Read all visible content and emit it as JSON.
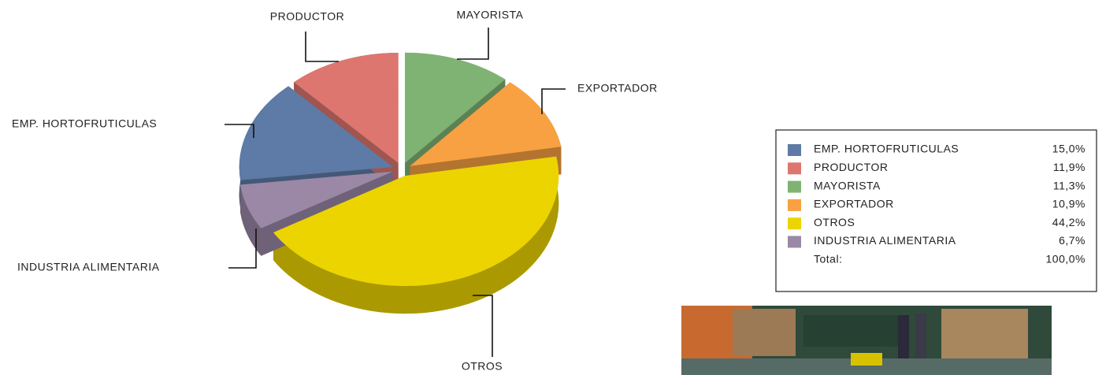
{
  "chart_data": {
    "type": "pie",
    "categories": [
      "EMP. HORTOFRUTICULAS",
      "PRODUCTOR",
      "MAYORISTA",
      "EXPORTADOR",
      "OTROS",
      "INDUSTRIA ALIMENTARIA"
    ],
    "values": [
      15.0,
      11.9,
      11.3,
      10.9,
      44.2,
      6.7
    ],
    "value_labels": [
      "15,0%",
      "11,9%",
      "11,3%",
      "10,9%",
      "44,2%",
      "6,7%"
    ],
    "colors": [
      "#5e7aa6",
      "#dd766f",
      "#7fb374",
      "#f8a142",
      "#ecd400",
      "#9a88a6"
    ],
    "total_name": "Total:",
    "total": 100,
    "total_label": "100,0%"
  }
}
